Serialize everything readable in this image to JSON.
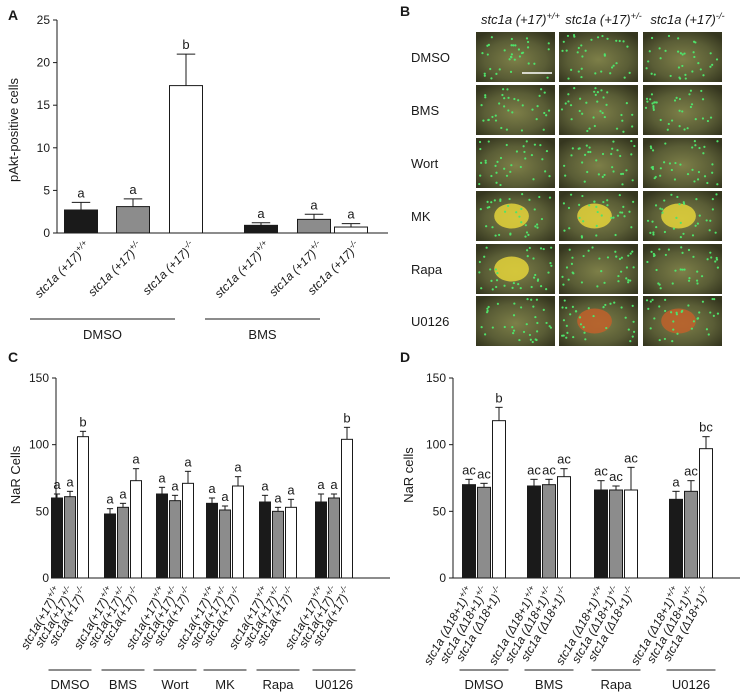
{
  "panels": {
    "A": {
      "letter": "A",
      "chart_data": {
        "type": "bar",
        "ylabel": "pAkt-positive cells",
        "ylim": [
          0,
          25
        ],
        "yticks": [
          0,
          5,
          10,
          15,
          20,
          25
        ],
        "categories": [
          "stc1a (+17)+/+",
          "stc1a (+17)+/-",
          "stc1a (+17)-/-",
          "stc1a (+17)+/+",
          "stc1a (+17)+/-",
          "stc1a (+17)-/-"
        ],
        "cat_base": "stc1a (+17)",
        "cat_sup": [
          "+/+",
          "+/-",
          "-/-",
          "+/+",
          "+/-",
          "-/-"
        ],
        "values": [
          2.7,
          3.1,
          17.3,
          0.9,
          1.6,
          0.7
        ],
        "errors": [
          0.9,
          0.9,
          3.7,
          0.3,
          0.6,
          0.4
        ],
        "fills": [
          "#1a1a1a",
          "#8c8c8c",
          "#ffffff",
          "#1a1a1a",
          "#8c8c8c",
          "#ffffff"
        ],
        "letters": [
          "a",
          "a",
          "b",
          "a",
          "a",
          "a"
        ],
        "groups": [
          {
            "label": "DMSO",
            "from": 0,
            "to": 2
          },
          {
            "label": "BMS",
            "from": 3,
            "to": 5
          }
        ]
      }
    },
    "B": {
      "letter": "B",
      "columns": [
        "stc1a (+17)+/+",
        "stc1a (+17)+/-",
        "stc1a (+17)-/-"
      ],
      "col_base": "stc1a (+17)",
      "col_sup": [
        "+/+",
        "+/-",
        "-/-"
      ],
      "rows": [
        "DMSO",
        "BMS",
        "Wort",
        "MK",
        "Rapa",
        "U0126"
      ]
    },
    "C": {
      "letter": "C",
      "chart_data": {
        "type": "bar",
        "ylabel": "NaR Cells",
        "ylim": [
          0,
          150
        ],
        "yticks": [
          0,
          50,
          100,
          150
        ],
        "cat_base": "stc1a(+17)",
        "cat_sup": [
          "+/+",
          "+/-",
          "-/-"
        ],
        "letters_per_group": [
          [
            "a",
            "a",
            "b"
          ],
          [
            "a",
            "a",
            "a"
          ],
          [
            "a",
            "a",
            "a"
          ],
          [
            "a",
            "a",
            "a"
          ],
          [
            "a",
            "a",
            "a"
          ],
          [
            "a",
            "a",
            "b"
          ]
        ],
        "groups": [
          {
            "label": "DMSO",
            "values": [
              60,
              61,
              106
            ],
            "errors": [
              3,
              4,
              4
            ]
          },
          {
            "label": "BMS",
            "values": [
              48,
              53,
              73
            ],
            "errors": [
              4,
              3,
              9
            ]
          },
          {
            "label": "Wort",
            "values": [
              63,
              58,
              71
            ],
            "errors": [
              5,
              4,
              9
            ]
          },
          {
            "label": "MK",
            "values": [
              56,
              51,
              69
            ],
            "errors": [
              4,
              3,
              7
            ]
          },
          {
            "label": "Rapa",
            "values": [
              57,
              50,
              53
            ],
            "errors": [
              5,
              3,
              6
            ]
          },
          {
            "label": "U0126",
            "values": [
              57,
              60,
              104
            ],
            "errors": [
              6,
              3,
              9
            ]
          }
        ],
        "fills": [
          "#1a1a1a",
          "#8c8c8c",
          "#ffffff"
        ]
      }
    },
    "D": {
      "letter": "D",
      "chart_data": {
        "type": "bar",
        "ylabel": "NaR cells",
        "ylim": [
          0,
          150
        ],
        "yticks": [
          0,
          50,
          100,
          150
        ],
        "cat_base": "stc1a (Δ18+1)",
        "cat_sup": [
          "+/+",
          "+/-",
          "-/-"
        ],
        "letters_per_group": [
          [
            "ac",
            "ac",
            "b"
          ],
          [
            "ac",
            "ac",
            "ac"
          ],
          [
            "ac",
            "ac",
            "ac"
          ],
          [
            "a",
            "ac",
            "bc"
          ]
        ],
        "groups": [
          {
            "label": "DMSO",
            "values": [
              70,
              68,
              118
            ],
            "errors": [
              4,
              3,
              10
            ]
          },
          {
            "label": "BMS",
            "values": [
              69,
              70,
              76
            ],
            "errors": [
              5,
              4,
              6
            ]
          },
          {
            "label": "Rapa",
            "values": [
              66,
              66,
              66
            ],
            "errors": [
              7,
              3,
              17
            ]
          },
          {
            "label": "U0126",
            "values": [
              59,
              65,
              97
            ],
            "errors": [
              6,
              8,
              9
            ]
          }
        ],
        "fills": [
          "#1a1a1a",
          "#8c8c8c",
          "#ffffff"
        ]
      }
    }
  }
}
